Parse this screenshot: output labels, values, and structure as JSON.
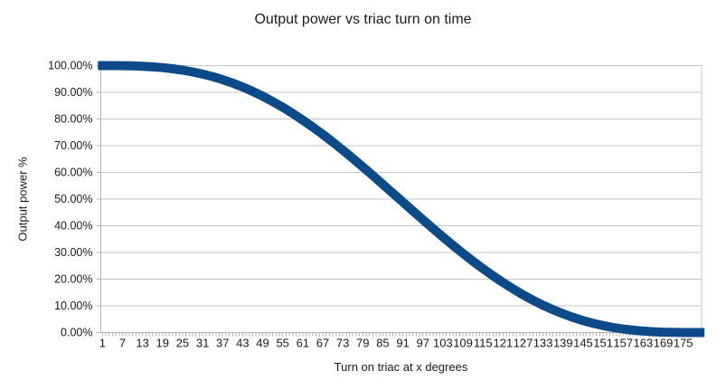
{
  "colors": {
    "series": "#0d4a89",
    "grid": "#c6c6c6",
    "axis": "#b3b3b3",
    "text": "#1a1a1a",
    "background": "#ffffff"
  },
  "chart_data": {
    "type": "line",
    "title": "Output power vs triac turn on time",
    "xlabel": "Turn on triac at x degrees",
    "ylabel": "Output power %",
    "legend": "none",
    "grid": "horizontal",
    "marker": "square",
    "x_min": 1,
    "x_max": 180,
    "minor_tick_step": 1,
    "ylim": [
      0,
      100
    ],
    "y_ticks": [
      0,
      10,
      20,
      30,
      40,
      50,
      60,
      70,
      80,
      90,
      100
    ],
    "y_tick_labels": [
      "0.00%",
      "10.00%",
      "20.00%",
      "30.00%",
      "40.00%",
      "50.00%",
      "60.00%",
      "70.00%",
      "80.00%",
      "90.00%",
      "100.00%"
    ],
    "x_tick_labels": [
      1,
      7,
      13,
      19,
      25,
      31,
      37,
      43,
      49,
      55,
      61,
      67,
      73,
      79,
      85,
      91,
      97,
      103,
      109,
      115,
      121,
      127,
      133,
      139,
      145,
      151,
      157,
      163,
      169,
      175
    ],
    "series": [
      {
        "name": "Output power %",
        "x": [
          1,
          4,
          7,
          10,
          13,
          16,
          19,
          22,
          25,
          28,
          31,
          34,
          37,
          40,
          43,
          46,
          49,
          52,
          55,
          58,
          61,
          64,
          67,
          70,
          73,
          76,
          79,
          82,
          85,
          88,
          91,
          94,
          97,
          100,
          103,
          106,
          109,
          112,
          115,
          118,
          121,
          124,
          127,
          130,
          133,
          136,
          139,
          142,
          145,
          148,
          151,
          154,
          157,
          160,
          163,
          166,
          169,
          172,
          175,
          178,
          180
        ],
        "values_percent": [
          100.0,
          99.99,
          99.96,
          99.89,
          99.75,
          99.54,
          99.24,
          98.83,
          98.3,
          97.64,
          96.83,
          95.87,
          94.74,
          93.45,
          91.99,
          90.35,
          88.54,
          86.55,
          84.4,
          82.08,
          79.61,
          76.99,
          74.23,
          71.34,
          68.34,
          65.25,
          62.07,
          58.83,
          55.54,
          52.22,
          48.89,
          45.56,
          42.26,
          39.0,
          35.8,
          32.68,
          29.65,
          26.72,
          23.92,
          21.25,
          18.73,
          16.36,
          14.15,
          12.1,
          10.23,
          8.54,
          7.02,
          5.67,
          4.49,
          3.47,
          2.61,
          1.9,
          1.33,
          0.88,
          0.54,
          0.31,
          0.15,
          0.06,
          0.01,
          0.0,
          0.0
        ]
      }
    ]
  }
}
